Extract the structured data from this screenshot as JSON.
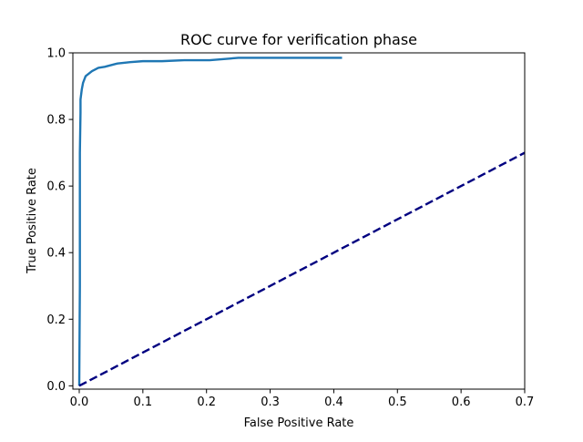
{
  "chart_data": {
    "type": "line",
    "title": "ROC curve for verification phase",
    "xlabel": "False Positive Rate",
    "ylabel": "True Positive Rate",
    "xlim": [
      -0.01,
      0.7
    ],
    "ylim": [
      -0.01,
      1.0
    ],
    "xticks": [
      "0.0",
      "0.1",
      "0.2",
      "0.3",
      "0.4",
      "0.5",
      "0.6",
      "0.7"
    ],
    "yticks": [
      "0.0",
      "0.2",
      "0.4",
      "0.6",
      "0.8",
      "1.0"
    ],
    "grid": false,
    "series": [
      {
        "color": "#1f77b4",
        "style": "solid",
        "x": [
          0.0,
          0.001,
          0.001,
          0.002,
          0.002,
          0.004,
          0.006,
          0.01,
          0.02,
          0.03,
          0.04,
          0.06,
          0.08,
          0.1,
          0.13,
          0.165,
          0.205,
          0.25,
          0.3,
          0.35,
          0.413
        ],
        "y": [
          0.0,
          0.3,
          0.7,
          0.82,
          0.86,
          0.89,
          0.91,
          0.93,
          0.945,
          0.955,
          0.958,
          0.968,
          0.972,
          0.975,
          0.975,
          0.978,
          0.978,
          0.985,
          0.985,
          0.985,
          0.985
        ]
      },
      {
        "color": "#000080",
        "style": "dashed",
        "x": [
          0.0,
          0.7
        ],
        "y": [
          0.0,
          0.7
        ]
      }
    ]
  }
}
